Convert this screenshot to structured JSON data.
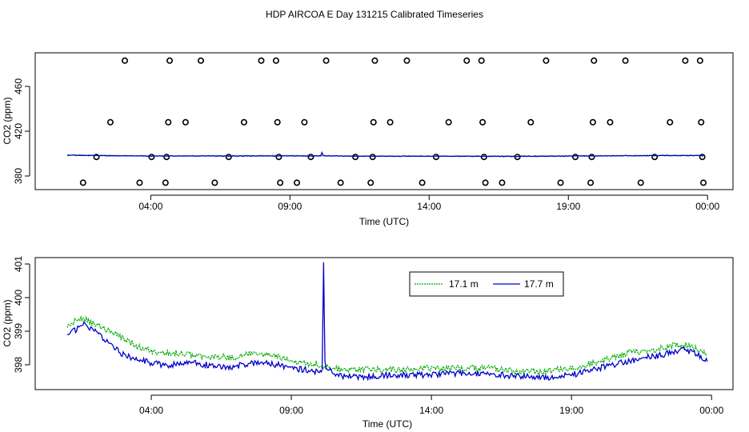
{
  "title": "HDP AIRCOA E  Day 131215  Calibrated Timeseries",
  "chart_data": [
    {
      "type": "scatter",
      "xlabel": "Time (UTC)",
      "ylabel": "CO2 (ppm)",
      "xlim": [
        0.0,
        24.0
      ],
      "ylim": [
        368,
        486
      ],
      "x_ticks": [
        {
          "label": "04:00",
          "value": 4
        },
        {
          "label": "09:00",
          "value": 9
        },
        {
          "label": "14:00",
          "value": 14
        },
        {
          "label": "19:00",
          "value": 19
        },
        {
          "label": "00:00",
          "value": 24
        }
      ],
      "y_ticks": [
        380,
        420,
        460
      ],
      "points": [
        {
          "x": 1.57,
          "y": 374
        },
        {
          "x": 2.05,
          "y": 397
        },
        {
          "x": 2.55,
          "y": 428
        },
        {
          "x": 3.07,
          "y": 483
        },
        {
          "x": 3.6,
          "y": 374
        },
        {
          "x": 4.03,
          "y": 397
        },
        {
          "x": 4.53,
          "y": 374
        },
        {
          "x": 4.57,
          "y": 397
        },
        {
          "x": 4.63,
          "y": 428
        },
        {
          "x": 4.68,
          "y": 483
        },
        {
          "x": 5.25,
          "y": 428
        },
        {
          "x": 5.8,
          "y": 483
        },
        {
          "x": 6.3,
          "y": 374
        },
        {
          "x": 6.8,
          "y": 397
        },
        {
          "x": 7.35,
          "y": 428
        },
        {
          "x": 7.97,
          "y": 483
        },
        {
          "x": 8.5,
          "y": 483
        },
        {
          "x": 8.55,
          "y": 428
        },
        {
          "x": 8.6,
          "y": 397
        },
        {
          "x": 8.65,
          "y": 374
        },
        {
          "x": 9.25,
          "y": 374
        },
        {
          "x": 9.52,
          "y": 428
        },
        {
          "x": 9.75,
          "y": 397
        },
        {
          "x": 10.3,
          "y": 483
        },
        {
          "x": 10.82,
          "y": 374
        },
        {
          "x": 11.35,
          "y": 397
        },
        {
          "x": 11.9,
          "y": 374
        },
        {
          "x": 11.97,
          "y": 397
        },
        {
          "x": 12.0,
          "y": 428
        },
        {
          "x": 12.05,
          "y": 483
        },
        {
          "x": 12.6,
          "y": 428
        },
        {
          "x": 13.2,
          "y": 483
        },
        {
          "x": 13.75,
          "y": 374
        },
        {
          "x": 14.25,
          "y": 397
        },
        {
          "x": 14.7,
          "y": 428
        },
        {
          "x": 15.35,
          "y": 483
        },
        {
          "x": 15.88,
          "y": 483
        },
        {
          "x": 15.92,
          "y": 428
        },
        {
          "x": 15.97,
          "y": 397
        },
        {
          "x": 16.02,
          "y": 374
        },
        {
          "x": 16.62,
          "y": 374
        },
        {
          "x": 17.17,
          "y": 397
        },
        {
          "x": 17.65,
          "y": 428
        },
        {
          "x": 18.2,
          "y": 483
        },
        {
          "x": 18.72,
          "y": 374
        },
        {
          "x": 19.25,
          "y": 397
        },
        {
          "x": 19.8,
          "y": 374
        },
        {
          "x": 19.84,
          "y": 397
        },
        {
          "x": 19.88,
          "y": 428
        },
        {
          "x": 19.92,
          "y": 483
        },
        {
          "x": 20.5,
          "y": 428
        },
        {
          "x": 21.05,
          "y": 483
        },
        {
          "x": 21.6,
          "y": 374
        },
        {
          "x": 22.1,
          "y": 397
        },
        {
          "x": 22.65,
          "y": 428
        },
        {
          "x": 23.2,
          "y": 483
        },
        {
          "x": 23.73,
          "y": 483
        },
        {
          "x": 23.77,
          "y": 428
        },
        {
          "x": 23.81,
          "y": 397
        },
        {
          "x": 23.85,
          "y": 374
        }
      ],
      "series": [
        {
          "color": "#00aa00",
          "x": [
            1.0,
            4.0,
            9.0,
            10.1,
            12.0,
            14.0,
            17.0,
            19.0,
            21.0,
            23.0,
            23.85
          ],
          "values": [
            398.8,
            398.0,
            398.2,
            398.1,
            397.8,
            397.8,
            397.8,
            398.0,
            398.2,
            398.5,
            398.3
          ]
        },
        {
          "color": "#0000cc",
          "x": [
            1.0,
            4.0,
            9.0,
            10.1,
            10.15,
            10.2,
            12.0,
            14.0,
            17.0,
            19.0,
            21.0,
            23.0,
            23.85
          ],
          "values": [
            398.5,
            397.8,
            397.9,
            397.9,
            401.0,
            398.0,
            397.6,
            397.7,
            397.5,
            397.8,
            398.1,
            398.3,
            398.1
          ]
        }
      ]
    },
    {
      "type": "line",
      "xlabel": "Time (UTC)",
      "ylabel": "CO2 (ppm)",
      "xlim": [
        0.0,
        24.0
      ],
      "ylim": [
        397.35,
        401.15
      ],
      "x_ticks": [
        {
          "label": "04:00",
          "value": 4
        },
        {
          "label": "09:00",
          "value": 9
        },
        {
          "label": "14:00",
          "value": 14
        },
        {
          "label": "19:00",
          "value": 19
        },
        {
          "label": "00:00",
          "value": 24
        }
      ],
      "y_ticks": [
        398,
        399,
        400,
        401
      ],
      "legend": {
        "placement": "top-center"
      },
      "series": [
        {
          "name": "17.1 m",
          "color": "#00aa00",
          "x": [
            1.0,
            1.3,
            1.6,
            2.0,
            2.5,
            3.0,
            3.5,
            4.0,
            4.5,
            5.0,
            5.5,
            6.0,
            6.5,
            7.0,
            7.5,
            8.0,
            8.5,
            9.0,
            9.5,
            10.0,
            10.5,
            11.0,
            11.5,
            12.0,
            12.5,
            13.0,
            13.5,
            14.0,
            14.5,
            15.0,
            15.5,
            16.0,
            16.5,
            17.0,
            17.5,
            18.0,
            18.5,
            19.0,
            19.5,
            20.0,
            20.5,
            21.0,
            21.5,
            22.0,
            22.5,
            23.0,
            23.5,
            23.85
          ],
          "values": [
            399.2,
            399.3,
            399.35,
            399.2,
            399.0,
            398.8,
            398.55,
            398.4,
            398.35,
            398.35,
            398.3,
            398.25,
            398.25,
            398.2,
            398.35,
            398.3,
            398.25,
            398.1,
            398.05,
            398.0,
            397.9,
            397.85,
            397.85,
            397.85,
            397.85,
            397.85,
            397.9,
            397.9,
            397.9,
            397.9,
            397.9,
            397.9,
            397.85,
            397.8,
            397.8,
            397.8,
            397.85,
            397.9,
            398.0,
            398.1,
            398.2,
            398.35,
            398.4,
            398.45,
            398.55,
            398.6,
            398.45,
            398.3
          ]
        },
        {
          "name": "17.7 m",
          "color": "#0000cc",
          "x": [
            1.0,
            1.3,
            1.6,
            2.0,
            2.5,
            3.0,
            3.5,
            4.0,
            4.5,
            5.0,
            5.5,
            6.0,
            6.5,
            7.0,
            7.5,
            8.0,
            8.5,
            9.0,
            9.5,
            10.0,
            10.1,
            10.15,
            10.2,
            10.5,
            11.0,
            11.5,
            12.0,
            12.5,
            13.0,
            13.5,
            14.0,
            14.5,
            15.0,
            15.5,
            16.0,
            16.5,
            17.0,
            17.5,
            18.0,
            18.5,
            19.0,
            19.5,
            20.0,
            20.5,
            21.0,
            21.5,
            22.0,
            22.5,
            23.0,
            23.5,
            23.85
          ],
          "values": [
            398.9,
            399.05,
            399.2,
            399.0,
            398.6,
            398.3,
            398.15,
            398.05,
            398.0,
            398.0,
            398.05,
            398.0,
            397.95,
            397.95,
            398.05,
            398.05,
            398.0,
            397.9,
            397.85,
            397.8,
            397.85,
            401.05,
            398.0,
            397.7,
            397.65,
            397.65,
            397.65,
            397.7,
            397.7,
            397.7,
            397.7,
            397.75,
            397.75,
            397.75,
            397.7,
            397.7,
            397.65,
            397.65,
            397.6,
            397.65,
            397.7,
            397.8,
            397.9,
            398.0,
            398.1,
            398.2,
            398.25,
            398.35,
            398.45,
            398.3,
            398.1
          ]
        }
      ]
    }
  ]
}
